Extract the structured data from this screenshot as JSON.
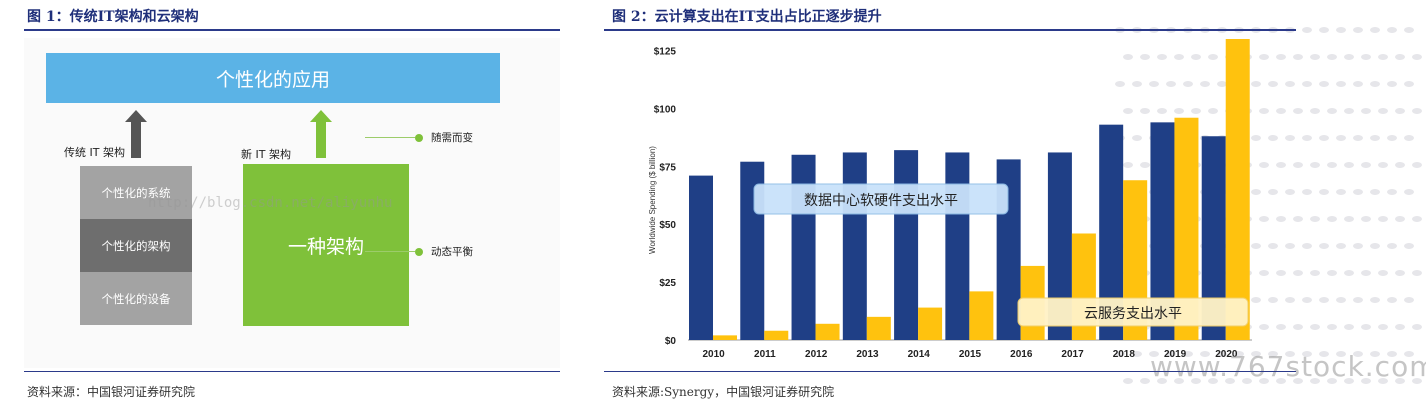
{
  "left": {
    "title": "图 1：传统IT架构和云架构",
    "source": "资料来源：中国银河证券研究院",
    "top_bar": "个性化的应用",
    "traditional_label": "传统 IT 架构",
    "new_label": "新 IT 架构",
    "stack": [
      "个性化的系统",
      "个性化的架构",
      "个性化的设备"
    ],
    "arch_box": "一种架构",
    "notes": [
      "随需而变",
      "动态平衡"
    ],
    "watermark": "http://blog.csdn.net/aliyunhu",
    "colors": {
      "app_bar": "#5bb3e6",
      "arch_box": "#7fc13a",
      "stack": [
        "#a3a3a3",
        "#6e6e6e",
        "#a3a3a3"
      ],
      "arrow_gray": "#555555",
      "arrow_green": "#7fc13a"
    }
  },
  "right": {
    "title": "图 2：云计算支出在IT支出占比正逐步提升",
    "source": "资料来源:Synergy，中国银河证券研究院",
    "site_watermark": "www.767stock.com"
  },
  "chart_data": {
    "type": "bar",
    "title": "",
    "ylabel": "Worldwide Spending ($ billion)",
    "xlabel": "",
    "ylim": [
      0,
      130
    ],
    "yticks": [
      0,
      25,
      50,
      75,
      100,
      125
    ],
    "ytick_labels": [
      "$0",
      "$25",
      "$50",
      "$75",
      "$100",
      "$125"
    ],
    "categories": [
      "2010",
      "2011",
      "2012",
      "2013",
      "2014",
      "2015",
      "2016",
      "2017",
      "2018",
      "2019",
      "2020"
    ],
    "series": [
      {
        "color": "#1f3f86",
        "values": [
          71,
          77,
          80,
          81,
          82,
          81,
          78,
          81,
          93,
          94,
          88
        ]
      },
      {
        "color": "#ffc20e",
        "values": [
          2,
          4,
          7,
          10,
          14,
          21,
          32,
          46,
          69,
          96,
          130
        ]
      }
    ],
    "annotations": [
      {
        "text": "数据中心软硬件支出水平",
        "series_index": 0
      },
      {
        "text": "云服务支出水平",
        "series_index": 1
      }
    ],
    "grid": false,
    "legend": "none"
  }
}
